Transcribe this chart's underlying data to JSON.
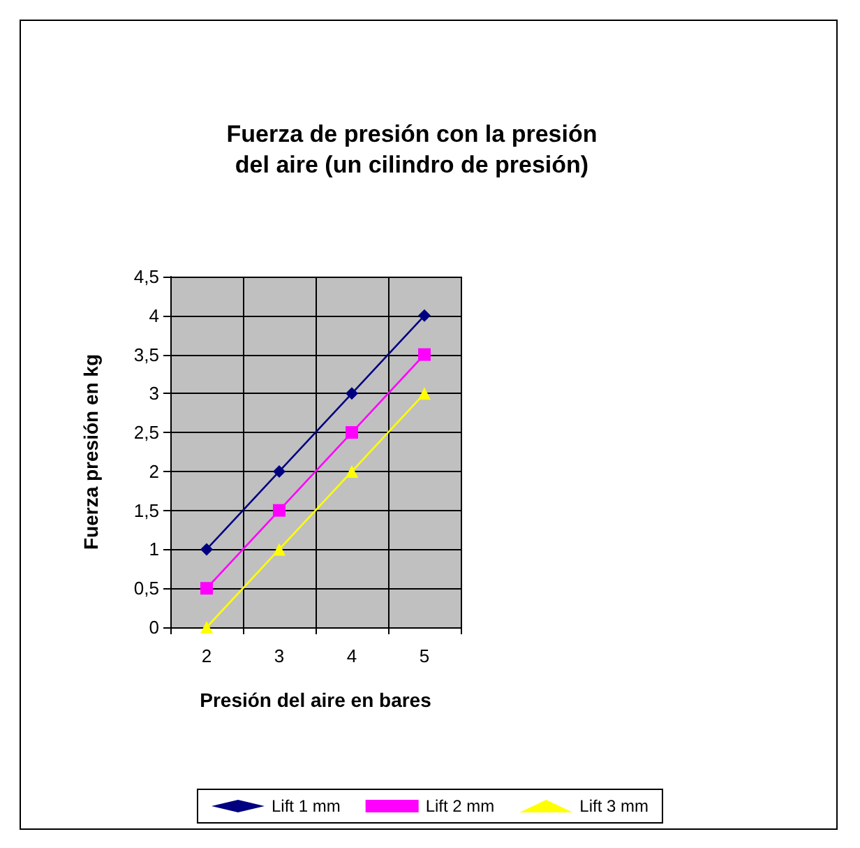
{
  "chart_data": {
    "type": "line",
    "title": "Fuerza de presión con la presión\ndel aire (un cilindro de presión)",
    "xlabel": "Presión del aire en bares",
    "ylabel": "Fuerza presión en kg",
    "categories": [
      "2",
      "3",
      "4",
      "5"
    ],
    "series": [
      {
        "name": "Lift 1 mm",
        "color": "#000080",
        "marker": "diamond",
        "values": [
          1,
          2,
          3,
          4
        ]
      },
      {
        "name": "Lift 2 mm",
        "color": "#ff00ff",
        "marker": "square",
        "values": [
          0.5,
          1.5,
          2.5,
          3.5
        ]
      },
      {
        "name": "Lift 3 mm",
        "color": "#ffff00",
        "marker": "triangle",
        "values": [
          0,
          1,
          2,
          3
        ]
      }
    ],
    "ylim": [
      0,
      4.5
    ],
    "yticks": [
      0,
      {
        "value": 0.5,
        "label": "0,5"
      },
      1,
      {
        "value": 1.5,
        "label": "1,5"
      },
      2,
      {
        "value": 2.5,
        "label": "2,5"
      },
      3,
      {
        "value": 3.5,
        "label": "3,5"
      },
      4,
      {
        "value": 4.5,
        "label": "4,5"
      }
    ],
    "grid": true,
    "legend": "bottom",
    "line_style": "solid"
  }
}
